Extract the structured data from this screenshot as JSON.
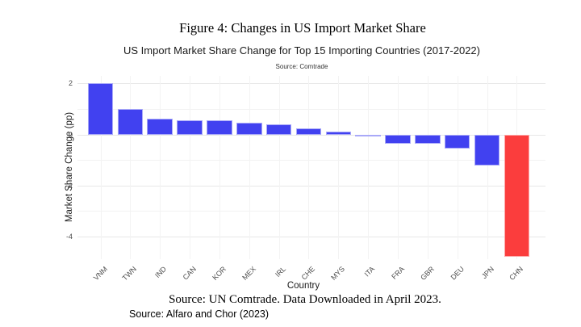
{
  "figure_title": "Figure 4: Changes in US Import Market Share",
  "chart_data": {
    "type": "bar",
    "title": "US Import Market Share Change for Top 15 Importing Countries (2017-2022)",
    "subtitle": "Source: Comtrade",
    "xlabel": "Country",
    "ylabel": "Market Share Change (pp)",
    "categories": [
      "VNM",
      "TWN",
      "IND",
      "CAN",
      "KOR",
      "MEX",
      "IRL",
      "CHE",
      "MYS",
      "ITA",
      "FRA",
      "GBR",
      "DEU",
      "JPN",
      "CHN"
    ],
    "values": [
      2.0,
      1.0,
      0.62,
      0.55,
      0.54,
      0.45,
      0.4,
      0.25,
      0.1,
      -0.03,
      -0.35,
      -0.35,
      -0.55,
      -1.22,
      -4.82
    ],
    "yticks": [
      2,
      0,
      -2,
      -4
    ],
    "minor_yticks": [
      1,
      -1,
      -3
    ],
    "ylim": [
      -4.9,
      2.3
    ],
    "grid": "on",
    "legend": "none",
    "colors": {
      "bar_default": "#4141f0",
      "bar_highlight": "#fb3d3d",
      "highlight_category": "CHN",
      "grid_major": "#e7e7e7",
      "grid_minor": "#f3f3f3",
      "tick_text": "#4d4d4d"
    }
  },
  "captions": {
    "data_source": "Source: UN Comtrade. Data Downloaded in April 2023.",
    "attribution": "Source: Alfaro and Chor (2023)"
  }
}
